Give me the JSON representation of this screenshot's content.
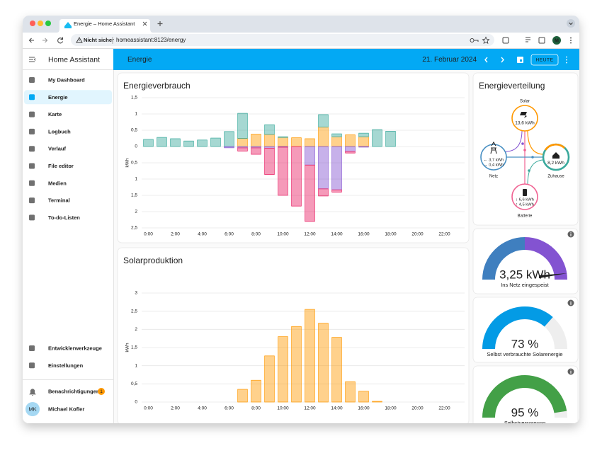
{
  "browser": {
    "tab_title": "Energie – Home Assistant",
    "security": "Nicht sicher",
    "url": "homeassistant:8123/energy",
    "profile": "M"
  },
  "sidebar": {
    "title": "Home Assistant",
    "items": [
      "My Dashboard",
      "Energie",
      "Karte",
      "Logbuch",
      "Verlauf",
      "File editor",
      "Medien",
      "Terminal",
      "To-do-Listen"
    ],
    "selected_index": 1,
    "tools": [
      "Entwicklerwerkzeuge",
      "Einstellungen"
    ],
    "notifications": "Benachrichtigungen",
    "notification_count": 1,
    "user_initials": "MK",
    "user_name": "Michael Kofler"
  },
  "header": {
    "title": "Energie",
    "date": "21. Februar 2024",
    "today_button": "HEUTE"
  },
  "chart_data": [
    {
      "type": "bar",
      "stacked": true,
      "title": "Energieverbrauch",
      "y_label": "kWh",
      "categories": [
        "0:00",
        null,
        "2:00",
        null,
        "4:00",
        null,
        "6:00",
        null,
        "8:00",
        null,
        "10:00",
        null,
        "12:00",
        null,
        "14:00",
        null,
        "16:00",
        null,
        "18:00",
        null,
        "20:00",
        null,
        "22:00",
        null
      ],
      "series": [
        {
          "color": "#ff9800",
          "values": [
            0,
            0,
            0,
            0,
            0,
            0,
            0,
            0.25,
            0.38,
            0.37,
            0.28,
            0.27,
            0.24,
            0.6,
            0.3,
            0.36,
            0.3,
            0,
            0,
            null,
            null,
            null,
            null,
            null
          ]
        },
        {
          "color": "#3aa99c",
          "values": [
            0.22,
            0.28,
            0.24,
            0.17,
            0.2,
            0.26,
            0.46,
            0.77,
            0,
            0.3,
            0.02,
            0,
            0,
            0.38,
            0.09,
            0,
            0.11,
            0.52,
            0.47,
            null,
            null,
            null,
            null,
            null
          ]
        },
        {
          "color": "#8353d1",
          "values": [
            0,
            0,
            0,
            0,
            0,
            0,
            -0.04,
            -0.04,
            -0.04,
            -0.05,
            -0.02,
            0,
            -0.57,
            -1.3,
            -1.33,
            -0.15,
            -0.02,
            0,
            0,
            null,
            null,
            null,
            null,
            null
          ]
        },
        {
          "color": "#e91e63",
          "values": [
            0,
            0,
            0,
            0,
            0,
            0,
            0,
            -0.1,
            -0.2,
            -0.81,
            -1.48,
            -1.83,
            -1.73,
            -0.22,
            -0.07,
            -0.05,
            0,
            0,
            0,
            null,
            null,
            null,
            null,
            null
          ]
        }
      ],
      "ylim": [
        -2.5,
        1.5
      ],
      "yticks": [
        {
          "value": 1.5,
          "label": "1,5"
        },
        1,
        {
          "value": 0.5,
          "label": "0,5"
        },
        0,
        {
          "value": -0.5,
          "label": "0,5"
        },
        {
          "value": -1,
          "label": "1"
        },
        {
          "value": -1.5,
          "label": "1,5"
        },
        {
          "value": -2,
          "label": "2"
        },
        {
          "value": -2.5,
          "label": "2,5"
        }
      ],
      "grid": true
    },
    {
      "type": "bar",
      "stacked": true,
      "title": "Solarproduktion",
      "y_label": "kWh",
      "categories": [
        "0:00",
        null,
        "2:00",
        null,
        "4:00",
        null,
        "6:00",
        null,
        "8:00",
        null,
        "10:00",
        null,
        "12:00",
        null,
        "14:00",
        null,
        "16:00",
        null,
        "18:00",
        null,
        "20:00",
        null,
        "22:00",
        null
      ],
      "series": [
        {
          "color": "#ff9800",
          "values": [
            null,
            null,
            null,
            null,
            null,
            null,
            null,
            0.35,
            0.6,
            1.27,
            1.8,
            2.08,
            2.55,
            2.17,
            1.78,
            0.56,
            0.3,
            0.02,
            null,
            null,
            null,
            null,
            null,
            null
          ]
        }
      ],
      "ylim": [
        0,
        3
      ],
      "yticks": [
        0,
        {
          "value": 0.5,
          "label": "0,5"
        },
        1,
        {
          "value": 1.5,
          "label": "1,5"
        },
        2,
        {
          "value": 2.5,
          "label": "2,5"
        },
        3
      ],
      "grid": true
    }
  ],
  "distribution": {
    "title": "Energieverteilung",
    "solar": {
      "label": "Solar",
      "value": "13,6 kWh"
    },
    "grid": {
      "label": "Netz",
      "from": "← 3,7 kWh",
      "to": "→ 0,4 kWh"
    },
    "home": {
      "label": "Zuhause",
      "value": "8,2 kWh"
    },
    "battery": {
      "label": "Batterie",
      "out": "↓ 6,6 kWh",
      "in": "↑ 4,5 kWh"
    }
  },
  "gauges": [
    {
      "value_label": "3,25 kWh",
      "name": "Ins Netz eingespeist"
    },
    {
      "value": 73,
      "value_label": "73 %",
      "name": "Selbst verbrauchte Solarenergie",
      "color": "#039be5"
    },
    {
      "value": 95,
      "value_label": "95 %",
      "name": "Selbstversorgung",
      "color": "#43a047"
    }
  ]
}
